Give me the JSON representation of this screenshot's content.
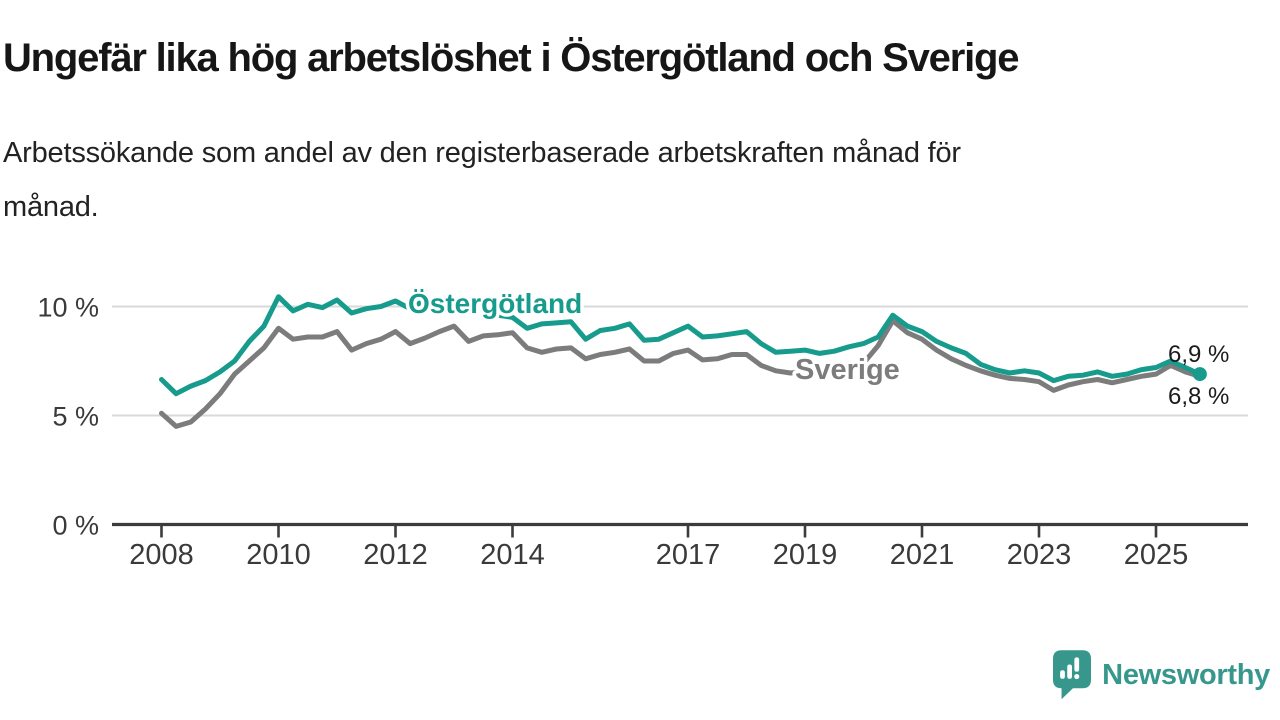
{
  "title": "Ungefär lika hög arbetslöshet i Östergötland och Sverige",
  "subtitle_lines": [
    "Arbetssökande som andel av den registerbaserade arbetskraften månad för",
    "månad."
  ],
  "brand": {
    "name": "Newsworthy",
    "icon": "bar-chart-exclamation-speech-bubble-icon",
    "color": "#37978c"
  },
  "colors": {
    "region_line": "#169b8c",
    "country_line": "#7c7c7c",
    "axis": "#3c3c3c",
    "grid": "#d9d9d9",
    "tick_text": "#3a3a3a",
    "value_text": "#1b1b1b",
    "title_text": "#161616"
  },
  "chart_data": {
    "type": "line",
    "title": "Ungefär lika hög arbetslöshet i Östergötland och Sverige",
    "xlabel": "",
    "ylabel": "Arbetssökande som andel av den registerbaserade arbetskraften (%)",
    "x_unit": "decimal year (monthly series, quarterly sampled)",
    "xlim": [
      2007.15,
      2026.55
    ],
    "ylim": [
      0,
      12
    ],
    "grid": "horizontal",
    "legend_position": "inline-labels",
    "xticks": [
      2008,
      2010,
      2012,
      2014,
      2017,
      2019,
      2021,
      2023,
      2025
    ],
    "yticks": [
      {
        "value": 0,
        "label": "0 %"
      },
      {
        "value": 5,
        "label": "5 %"
      },
      {
        "value": 10,
        "label": "10 %"
      }
    ],
    "x": [
      2008,
      2008.25,
      2008.5,
      2008.75,
      2009,
      2009.25,
      2009.5,
      2009.75,
      2010,
      2010.25,
      2010.5,
      2010.75,
      2011,
      2011.25,
      2011.5,
      2011.75,
      2012,
      2012.25,
      2012.5,
      2012.75,
      2013,
      2013.25,
      2013.5,
      2013.75,
      2014,
      2014.25,
      2014.5,
      2014.75,
      2015,
      2015.25,
      2015.5,
      2015.75,
      2016,
      2016.25,
      2016.5,
      2016.75,
      2017,
      2017.25,
      2017.5,
      2017.75,
      2018,
      2018.25,
      2018.5,
      2018.75,
      2019,
      2019.25,
      2019.5,
      2019.75,
      2020,
      2020.25,
      2020.5,
      2020.75,
      2021,
      2021.25,
      2021.5,
      2021.75,
      2022,
      2022.25,
      2022.5,
      2022.75,
      2023,
      2023.25,
      2023.5,
      2023.75,
      2024,
      2024.25,
      2024.5,
      2024.75,
      2025,
      2025.25,
      2025.5,
      2025.75
    ],
    "series": [
      {
        "name": "Östergötland",
        "color": "#169b8c",
        "end_label": "6,9 %",
        "end_value": 6.9,
        "end_dot": true,
        "values": [
          6.65,
          6.0,
          6.35,
          6.6,
          7.0,
          7.5,
          8.4,
          9.1,
          10.45,
          9.8,
          10.1,
          9.95,
          10.3,
          9.7,
          9.9,
          10.0,
          10.25,
          9.9,
          10.3,
          10.0,
          10.35,
          9.8,
          10.0,
          9.6,
          9.5,
          9.0,
          9.2,
          9.25,
          9.3,
          8.5,
          8.9,
          9.0,
          9.2,
          8.45,
          8.5,
          8.8,
          9.1,
          8.6,
          8.65,
          8.75,
          8.85,
          8.3,
          7.9,
          7.95,
          8.0,
          7.85,
          7.95,
          8.15,
          8.3,
          8.6,
          9.6,
          9.1,
          8.85,
          8.4,
          8.1,
          7.85,
          7.35,
          7.1,
          6.95,
          7.05,
          6.95,
          6.6,
          6.8,
          6.85,
          7.0,
          6.8,
          6.9,
          7.1,
          7.2,
          7.5,
          7.2,
          6.9
        ]
      },
      {
        "name": "Sverige",
        "color": "#7c7c7c",
        "end_label": "6,8 %",
        "end_value": 6.8,
        "end_dot": false,
        "values": [
          5.1,
          4.5,
          4.7,
          5.3,
          6.0,
          6.9,
          7.5,
          8.1,
          9.0,
          8.5,
          8.6,
          8.6,
          8.85,
          8.0,
          8.3,
          8.5,
          8.85,
          8.3,
          8.55,
          8.85,
          9.1,
          8.4,
          8.65,
          8.7,
          8.8,
          8.1,
          7.9,
          8.05,
          8.1,
          7.6,
          7.8,
          7.9,
          8.05,
          7.5,
          7.5,
          7.85,
          8.0,
          7.55,
          7.6,
          7.8,
          7.8,
          7.3,
          7.05,
          6.95,
          7.0,
          6.9,
          6.95,
          7.1,
          7.4,
          8.2,
          9.35,
          8.8,
          8.5,
          8.0,
          7.6,
          7.3,
          7.05,
          6.85,
          6.7,
          6.65,
          6.55,
          6.15,
          6.4,
          6.55,
          6.65,
          6.5,
          6.65,
          6.8,
          6.9,
          7.3,
          7.0,
          6.8
        ]
      }
    ]
  }
}
